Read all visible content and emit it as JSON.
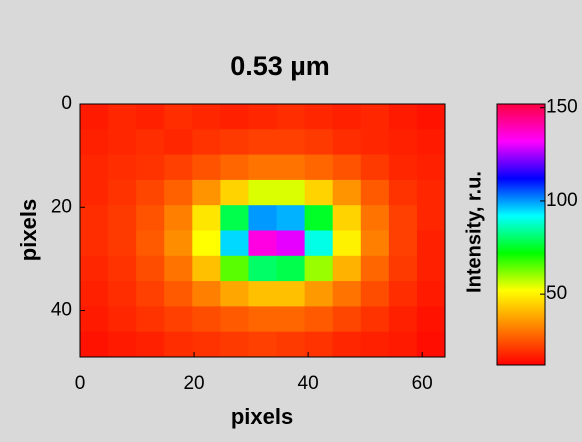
{
  "chart_data": {
    "type": "heatmap",
    "title": "0.53 µm",
    "x_label": "pixels",
    "y_label": "pixels",
    "xlim": [
      0,
      64
    ],
    "xticks": [
      0,
      20,
      40,
      60
    ],
    "ylim": [
      0,
      49
    ],
    "yticks": [
      0,
      20,
      40
    ],
    "y_reversed": true,
    "z": [
      [
        16,
        18,
        17,
        19,
        18,
        17,
        18,
        19,
        18,
        17,
        18,
        16,
        15
      ],
      [
        17,
        18,
        19,
        18,
        20,
        21,
        22,
        22,
        21,
        19,
        18,
        17,
        16
      ],
      [
        18,
        19,
        20,
        22,
        25,
        28,
        30,
        30,
        28,
        25,
        21,
        18,
        17
      ],
      [
        18,
        20,
        23,
        27,
        35,
        45,
        55,
        55,
        45,
        35,
        26,
        20,
        18
      ],
      [
        19,
        21,
        25,
        32,
        48,
        78,
        100,
        98,
        75,
        45,
        30,
        22,
        18
      ],
      [
        19,
        21,
        26,
        34,
        52,
        95,
        135,
        130,
        90,
        50,
        32,
        22,
        17
      ],
      [
        18,
        20,
        24,
        30,
        42,
        65,
        80,
        78,
        60,
        40,
        28,
        21,
        17
      ],
      [
        17,
        19,
        22,
        26,
        32,
        38,
        42,
        42,
        36,
        30,
        24,
        19,
        16
      ],
      [
        16,
        18,
        20,
        22,
        24,
        26,
        28,
        28,
        26,
        23,
        20,
        17,
        15
      ],
      [
        15,
        16,
        17,
        19,
        20,
        21,
        22,
        21,
        20,
        18,
        17,
        16,
        14
      ]
    ],
    "colormap": [
      "#ff0000",
      "#ff8000",
      "#ffff00",
      "#00ff00",
      "#00ffff",
      "#0000ff",
      "#ff00ff",
      "#ff0040"
    ],
    "colorbar_label": "Intensity, r.u.",
    "clim": [
      12,
      152
    ],
    "cticks": [
      50,
      100,
      150
    ]
  }
}
